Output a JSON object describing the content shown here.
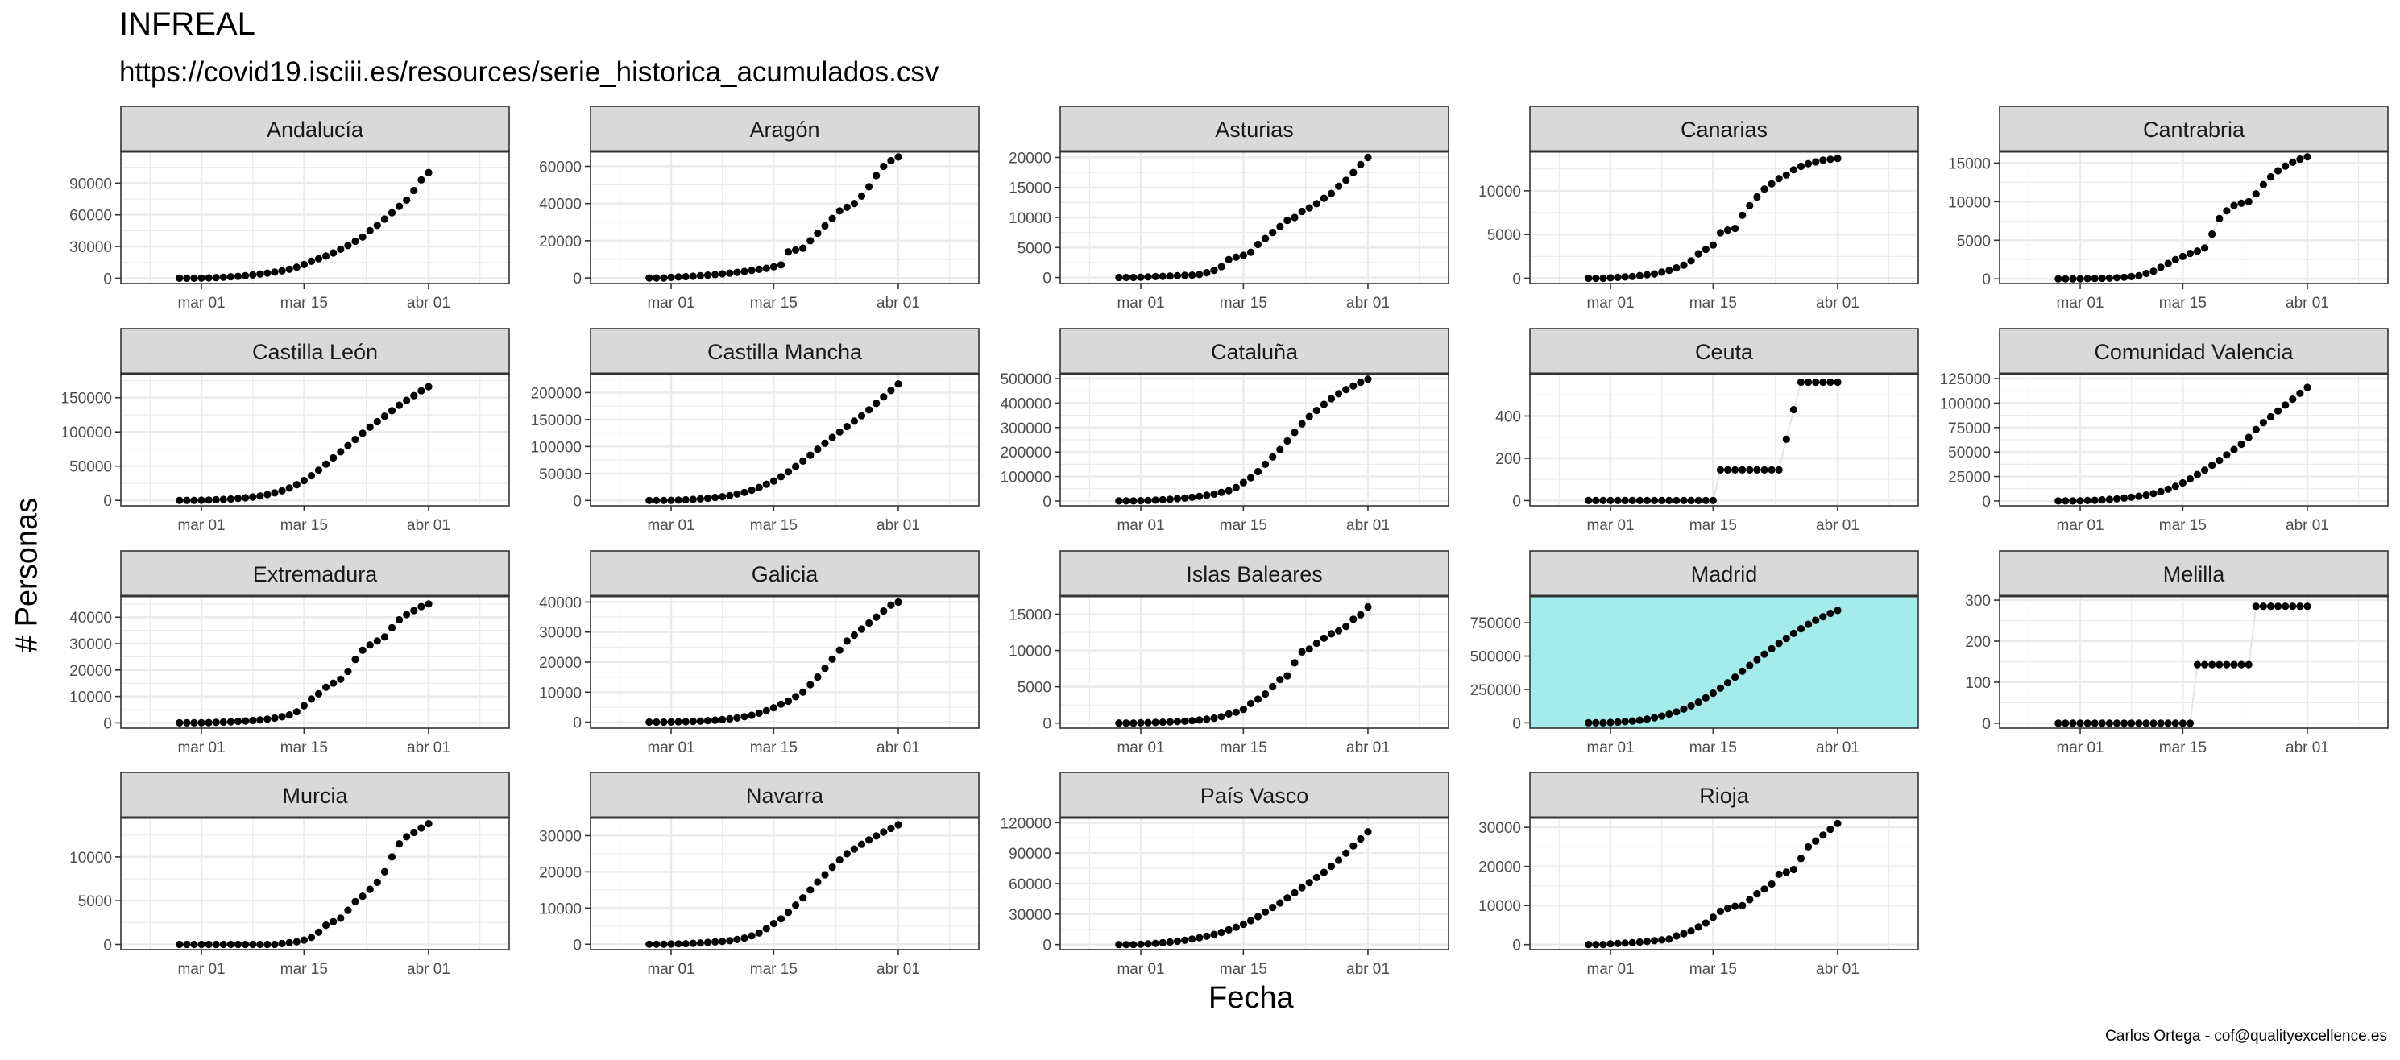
{
  "title": "INFREAL",
  "subtitle": "https://covid19.isciii.es/resources/serie_historica_acumulados.csv",
  "caption": "Carlos Ortega - cof@qualityexcellence.es",
  "colors": {
    "strip_fill": "#d9d9d9",
    "highlight_panel": "#a4ebeb",
    "grid": "#ebebeb",
    "point": "#000000",
    "line": "#e5e5e5"
  },
  "chart_data": {
    "type": "scatter",
    "facet_layout": "5 columns x 4 rows",
    "xlabel": "Fecha",
    "ylabel": "# Personas",
    "x_range": [
      "2020-02-19",
      "2020-04-12"
    ],
    "x_ticks": [
      {
        "date": "2020-03-01",
        "label": "mar 01"
      },
      {
        "date": "2020-03-15",
        "label": "mar 15"
      },
      {
        "date": "2020-04-01",
        "label": "abr 01"
      }
    ],
    "x_dates": [
      "2020-02-27",
      "2020-02-28",
      "2020-02-29",
      "2020-03-01",
      "2020-03-02",
      "2020-03-03",
      "2020-03-04",
      "2020-03-05",
      "2020-03-06",
      "2020-03-07",
      "2020-03-08",
      "2020-03-09",
      "2020-03-10",
      "2020-03-11",
      "2020-03-12",
      "2020-03-13",
      "2020-03-14",
      "2020-03-15",
      "2020-03-16",
      "2020-03-17",
      "2020-03-18",
      "2020-03-19",
      "2020-03-20",
      "2020-03-21",
      "2020-03-22",
      "2020-03-23",
      "2020-03-24",
      "2020-03-25",
      "2020-03-26",
      "2020-03-27",
      "2020-03-28",
      "2020-03-29",
      "2020-03-30",
      "2020-03-31",
      "2020-04-01"
    ],
    "grid": true,
    "panels": [
      {
        "name": "Andalucía",
        "ylim": [
          -5000,
          120000
        ],
        "yticks": [
          0,
          30000,
          60000,
          90000
        ],
        "highlight": false,
        "values": [
          0,
          0,
          0,
          100,
          300,
          600,
          900,
          1300,
          1800,
          2400,
          3100,
          3900,
          4800,
          5800,
          7000,
          8500,
          10500,
          13000,
          16000,
          18500,
          21000,
          24000,
          27500,
          31000,
          35000,
          39000,
          45000,
          50000,
          56000,
          62000,
          68000,
          74000,
          83000,
          93000,
          100000
        ]
      },
      {
        "name": "Aragón",
        "ylim": [
          -3000,
          68000
        ],
        "yticks": [
          0,
          20000,
          40000,
          60000
        ],
        "highlight": false,
        "values": [
          0,
          0,
          0,
          300,
          500,
          700,
          900,
          1200,
          1500,
          1800,
          2200,
          2600,
          3000,
          3500,
          4000,
          4600,
          5200,
          6000,
          7000,
          14000,
          15000,
          16000,
          20000,
          24000,
          28000,
          32000,
          36000,
          38000,
          40000,
          44000,
          49000,
          55000,
          60000,
          63000,
          65000
        ]
      },
      {
        "name": "Asturias",
        "ylim": [
          -1000,
          21000
        ],
        "yticks": [
          0,
          5000,
          10000,
          15000,
          20000
        ],
        "highlight": false,
        "values": [
          0,
          0,
          0,
          50,
          100,
          150,
          200,
          250,
          300,
          350,
          400,
          500,
          800,
          1200,
          1800,
          3000,
          3400,
          3700,
          4200,
          5500,
          6500,
          7500,
          8500,
          9500,
          10000,
          11000,
          11600,
          12300,
          13200,
          14000,
          15200,
          16200,
          17500,
          18800,
          20000
        ]
      },
      {
        "name": "Canarias",
        "ylim": [
          -600,
          14500
        ],
        "yticks": [
          0,
          5000,
          10000
        ],
        "highlight": false,
        "values": [
          0,
          0,
          0,
          50,
          100,
          150,
          200,
          300,
          400,
          500,
          700,
          900,
          1200,
          1500,
          2000,
          2800,
          3300,
          3800,
          5200,
          5500,
          5700,
          7200,
          8300,
          9300,
          10200,
          10800,
          11400,
          11800,
          12400,
          12800,
          13100,
          13300,
          13500,
          13600,
          13700
        ]
      },
      {
        "name": "Cantrabria",
        "ylim": [
          -600,
          16500
        ],
        "yticks": [
          0,
          5000,
          10000,
          15000
        ],
        "highlight": false,
        "values": [
          0,
          0,
          0,
          20,
          40,
          60,
          80,
          100,
          150,
          200,
          300,
          400,
          700,
          1000,
          1500,
          2000,
          2500,
          2900,
          3300,
          3600,
          4000,
          5800,
          7800,
          8800,
          9500,
          9800,
          10000,
          11000,
          12200,
          13200,
          14000,
          14600,
          15100,
          15500,
          15800
        ]
      },
      {
        "name": "Castilla León",
        "ylim": [
          -8000,
          185000
        ],
        "yticks": [
          0,
          50000,
          100000,
          150000
        ],
        "highlight": false,
        "values": [
          0,
          0,
          0,
          200,
          500,
          900,
          1400,
          2000,
          2800,
          3800,
          5000,
          6500,
          8500,
          11000,
          14000,
          18000,
          23000,
          29000,
          36000,
          44000,
          53000,
          62000,
          71000,
          80000,
          89000,
          98000,
          107000,
          115000,
          123000,
          131000,
          139000,
          146000,
          153000,
          160000,
          166000
        ]
      },
      {
        "name": "Castilla Mancha",
        "ylim": [
          -10000,
          235000
        ],
        "yticks": [
          0,
          50000,
          100000,
          150000,
          200000
        ],
        "highlight": false,
        "values": [
          0,
          0,
          0,
          200,
          600,
          1200,
          2000,
          3000,
          4000,
          5500,
          7000,
          9000,
          12000,
          15000,
          19000,
          24000,
          30000,
          36000,
          44000,
          53000,
          63000,
          73000,
          84000,
          95000,
          106000,
          117000,
          127000,
          137000,
          147000,
          157000,
          168000,
          180000,
          192000,
          204000,
          216000
        ]
      },
      {
        "name": "Cataluña",
        "ylim": [
          -20000,
          520000
        ],
        "yticks": [
          0,
          100000,
          200000,
          300000,
          400000,
          500000
        ],
        "highlight": false,
        "values": [
          0,
          0,
          0,
          1000,
          2000,
          3500,
          5000,
          7000,
          9500,
          12000,
          15000,
          19000,
          23000,
          28000,
          35000,
          42000,
          55000,
          75000,
          95000,
          120000,
          150000,
          180000,
          210000,
          245000,
          280000,
          315000,
          345000,
          370000,
          395000,
          418000,
          438000,
          455000,
          470000,
          485000,
          498000
        ]
      },
      {
        "name": "Ceuta",
        "ylim": [
          -25,
          600
        ],
        "yticks": [
          0,
          200,
          400
        ],
        "highlight": false,
        "values": [
          0,
          0,
          0,
          0,
          0,
          0,
          0,
          0,
          0,
          0,
          0,
          0,
          0,
          0,
          0,
          0,
          0,
          0,
          145,
          145,
          145,
          145,
          145,
          145,
          145,
          145,
          145,
          290,
          430,
          560,
          560,
          560,
          560,
          560,
          560
        ]
      },
      {
        "name": "Comunidad Valencia",
        "ylim": [
          -5000,
          130000
        ],
        "yticks": [
          0,
          25000,
          50000,
          75000,
          100000,
          125000
        ],
        "highlight": false,
        "values": [
          0,
          0,
          0,
          200,
          400,
          700,
          1100,
          1600,
          2200,
          2900,
          3800,
          4800,
          6000,
          7500,
          9500,
          12000,
          15000,
          18500,
          22500,
          27000,
          31500,
          36500,
          41500,
          47000,
          52500,
          58000,
          65000,
          73000,
          80000,
          86000,
          92000,
          98000,
          104000,
          110000,
          116000
        ]
      },
      {
        "name": "Extremadura",
        "ylim": [
          -2000,
          48000
        ],
        "yticks": [
          0,
          10000,
          20000,
          30000,
          40000
        ],
        "highlight": false,
        "values": [
          0,
          0,
          0,
          50,
          100,
          200,
          300,
          400,
          550,
          700,
          900,
          1100,
          1400,
          1800,
          2300,
          3000,
          4200,
          6500,
          9000,
          11000,
          13500,
          15000,
          16500,
          19500,
          24000,
          27500,
          29500,
          31000,
          32500,
          36000,
          39000,
          41000,
          42500,
          44000,
          45000
        ]
      },
      {
        "name": "Galicia",
        "ylim": [
          -2000,
          42000
        ],
        "yticks": [
          0,
          10000,
          20000,
          30000,
          40000
        ],
        "highlight": false,
        "values": [
          0,
          0,
          0,
          50,
          100,
          150,
          250,
          350,
          500,
          650,
          850,
          1100,
          1400,
          1800,
          2300,
          3000,
          3800,
          4800,
          6000,
          7000,
          8500,
          10000,
          12500,
          15000,
          18000,
          21000,
          24000,
          27000,
          29000,
          31000,
          33000,
          35000,
          37000,
          39000,
          40000
        ]
      },
      {
        "name": "Islas Baleares",
        "ylim": [
          -700,
          17500
        ],
        "yticks": [
          0,
          5000,
          10000,
          15000
        ],
        "highlight": false,
        "values": [
          0,
          0,
          0,
          30,
          60,
          90,
          120,
          160,
          210,
          260,
          330,
          420,
          530,
          680,
          880,
          1250,
          1500,
          1900,
          2700,
          3300,
          4000,
          5000,
          6000,
          6500,
          8300,
          9800,
          10200,
          11000,
          11700,
          12300,
          12700,
          13300,
          14300,
          14900,
          16000
        ]
      },
      {
        "name": "Madrid",
        "ylim": [
          -40000,
          950000
        ],
        "yticks": [
          0,
          250000,
          500000,
          750000
        ],
        "highlight": true,
        "values": [
          0,
          0,
          0,
          2000,
          5000,
          9000,
          14000,
          20000,
          28000,
          38000,
          50000,
          65000,
          82000,
          103000,
          127000,
          155000,
          187000,
          222000,
          260000,
          300000,
          343000,
          387000,
          430000,
          473000,
          515000,
          555000,
          595000,
          633000,
          670000,
          705000,
          738000,
          768000,
          795000,
          820000,
          842000
        ]
      },
      {
        "name": "Melilla",
        "ylim": [
          -12,
          310
        ],
        "yticks": [
          0,
          100,
          200,
          300
        ],
        "highlight": false,
        "values": [
          0,
          0,
          0,
          0,
          0,
          0,
          0,
          0,
          0,
          0,
          0,
          0,
          0,
          0,
          0,
          0,
          0,
          0,
          0,
          143,
          143,
          143,
          143,
          143,
          143,
          143,
          143,
          285,
          285,
          285,
          285,
          285,
          285,
          285,
          285
        ]
      },
      {
        "name": "Murcia",
        "ylim": [
          -600,
          14500
        ],
        "yticks": [
          0,
          5000,
          10000
        ],
        "highlight": false,
        "values": [
          0,
          0,
          0,
          0,
          0,
          0,
          0,
          0,
          0,
          0,
          0,
          0,
          0,
          0,
          100,
          200,
          300,
          500,
          800,
          1400,
          2200,
          2600,
          3000,
          3900,
          4900,
          5500,
          6300,
          7100,
          8300,
          10000,
          11500,
          12300,
          12800,
          13300,
          13800
        ]
      },
      {
        "name": "Navarra",
        "ylim": [
          -1500,
          35000
        ],
        "yticks": [
          0,
          10000,
          20000,
          30000
        ],
        "highlight": false,
        "values": [
          0,
          0,
          0,
          50,
          100,
          150,
          250,
          350,
          500,
          650,
          800,
          1000,
          1300,
          1700,
          2300,
          3100,
          4300,
          5700,
          7000,
          8800,
          10800,
          12800,
          15000,
          17200,
          19200,
          21300,
          23300,
          25000,
          26300,
          27600,
          28800,
          29900,
          31000,
          32000,
          33000
        ]
      },
      {
        "name": "País Vasco",
        "ylim": [
          -5000,
          125000
        ],
        "yticks": [
          0,
          30000,
          60000,
          90000,
          120000
        ],
        "highlight": false,
        "values": [
          0,
          0,
          0,
          300,
          700,
          1200,
          1800,
          2500,
          3300,
          4300,
          5500,
          6800,
          8200,
          10000,
          12000,
          14500,
          17000,
          20000,
          23500,
          27500,
          32000,
          36500,
          41000,
          46000,
          51000,
          56000,
          61000,
          66000,
          71000,
          77000,
          83000,
          90000,
          97000,
          104000,
          111000
        ]
      },
      {
        "name": "Rioja",
        "ylim": [
          -1300,
          32500
        ],
        "yticks": [
          0,
          10000,
          20000,
          30000
        ],
        "highlight": false,
        "values": [
          0,
          0,
          0,
          200,
          300,
          400,
          500,
          650,
          800,
          1000,
          1200,
          1400,
          2200,
          2800,
          3500,
          4500,
          5500,
          7000,
          8500,
          9300,
          9800,
          10000,
          11500,
          13000,
          14200,
          15500,
          18000,
          18500,
          19200,
          22000,
          25000,
          26500,
          28000,
          29500,
          31000
        ]
      }
    ]
  }
}
